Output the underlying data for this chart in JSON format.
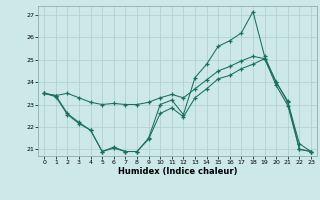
{
  "xlabel": "Humidex (Indice chaleur)",
  "bg_color": "#cce8e8",
  "grid_color": "#b0cece",
  "line_color": "#1a6e60",
  "xlim": [
    -0.5,
    23.5
  ],
  "ylim": [
    20.7,
    27.4
  ],
  "yticks": [
    21,
    22,
    23,
    24,
    25,
    26,
    27
  ],
  "xticks": [
    0,
    1,
    2,
    3,
    4,
    5,
    6,
    7,
    8,
    9,
    10,
    11,
    12,
    13,
    14,
    15,
    16,
    17,
    18,
    19,
    20,
    21,
    22,
    23
  ],
  "line1": {
    "x": [
      0,
      1,
      2,
      3,
      4,
      5,
      6,
      7,
      8,
      9,
      10,
      11,
      12,
      13,
      14,
      15,
      16,
      17,
      18,
      19,
      20,
      21,
      22,
      23
    ],
    "y": [
      23.5,
      23.4,
      22.6,
      22.2,
      21.85,
      20.9,
      21.1,
      20.9,
      20.9,
      21.5,
      23.0,
      23.2,
      22.55,
      24.2,
      24.8,
      25.6,
      25.85,
      26.2,
      27.15,
      25.15,
      24.0,
      23.1,
      21.25,
      20.9
    ]
  },
  "line2": {
    "x": [
      0,
      1,
      2,
      3,
      4,
      5,
      6,
      7,
      8,
      9,
      10,
      11,
      12,
      13,
      14,
      15,
      16,
      17,
      18,
      19,
      20,
      21,
      22,
      23
    ],
    "y": [
      23.5,
      23.4,
      23.5,
      23.3,
      23.1,
      23.0,
      23.05,
      23.0,
      23.0,
      23.1,
      23.3,
      23.45,
      23.3,
      23.7,
      24.1,
      24.5,
      24.7,
      24.95,
      25.15,
      25.05,
      24.0,
      23.15,
      21.0,
      20.9
    ]
  },
  "line3": {
    "x": [
      0,
      1,
      2,
      3,
      4,
      5,
      6,
      7,
      8,
      9,
      10,
      11,
      12,
      13,
      14,
      15,
      16,
      17,
      18,
      19,
      20,
      21,
      22,
      23
    ],
    "y": [
      23.5,
      23.35,
      22.55,
      22.15,
      21.85,
      20.9,
      21.05,
      20.9,
      20.9,
      21.45,
      22.6,
      22.85,
      22.45,
      23.3,
      23.7,
      24.15,
      24.3,
      24.6,
      24.8,
      25.05,
      23.85,
      22.95,
      21.0,
      20.9
    ]
  }
}
